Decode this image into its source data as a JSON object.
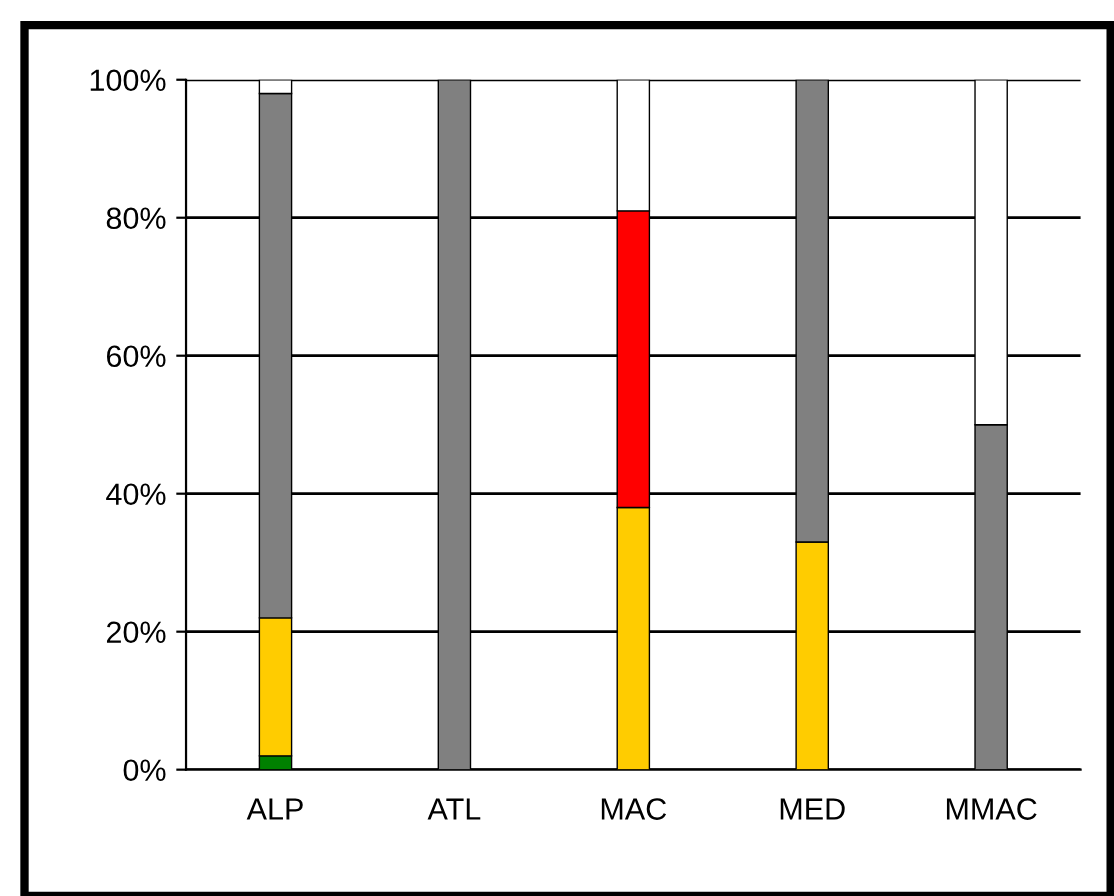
{
  "chart_data": {
    "type": "bar",
    "stacked": true,
    "categories": [
      "ALP",
      "ATL",
      "MAC",
      "MED",
      "MMAC"
    ],
    "series": [
      {
        "color": "#008000",
        "values": [
          2,
          null,
          null,
          null,
          null
        ]
      },
      {
        "color": "#ffcc00",
        "values": [
          20,
          null,
          38,
          33,
          null
        ]
      },
      {
        "color": "#ff0000",
        "values": [
          null,
          null,
          43,
          null,
          null
        ]
      },
      {
        "color": "#808080",
        "values": [
          76,
          100,
          null,
          67,
          50
        ]
      },
      {
        "color": "#ffffff",
        "values": [
          2,
          null,
          19,
          null,
          50
        ]
      }
    ],
    "ylim": [
      0,
      100
    ],
    "yticks": [
      {
        "value": 0,
        "label": "0%"
      },
      {
        "value": 20,
        "label": "20%"
      },
      {
        "value": 40,
        "label": "40%"
      },
      {
        "value": 60,
        "label": "60%"
      },
      {
        "value": 80,
        "label": "80%"
      },
      {
        "value": 100,
        "label": "100%"
      }
    ],
    "grid": "y"
  }
}
